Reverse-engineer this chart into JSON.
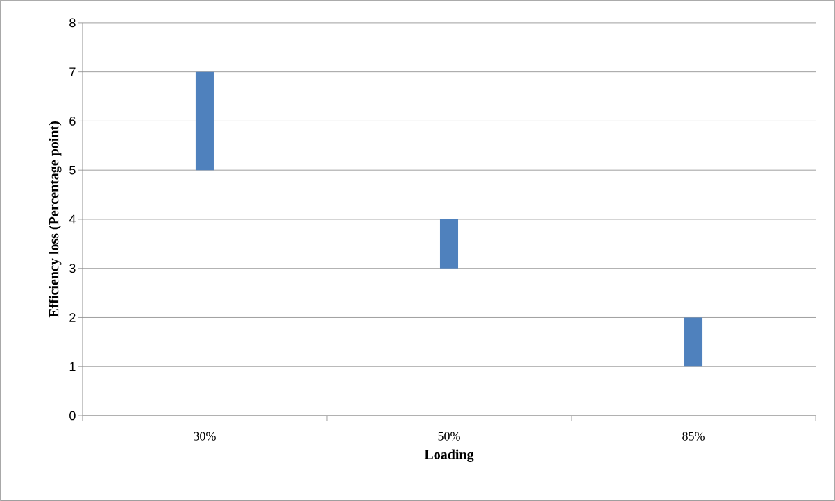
{
  "chart_data": {
    "type": "bar",
    "categories": [
      "30%",
      "50%",
      "85%"
    ],
    "base": [
      5,
      3,
      1
    ],
    "values": [
      2,
      1,
      1
    ],
    "color": "#4f81bd",
    "xlabel": "Loading",
    "ylabel": "Efficiency loss (Percentage point)",
    "ylim": [
      0,
      8
    ],
    "yticks": [
      0,
      1,
      2,
      3,
      4,
      5,
      6,
      7,
      8
    ],
    "grid": "y"
  }
}
